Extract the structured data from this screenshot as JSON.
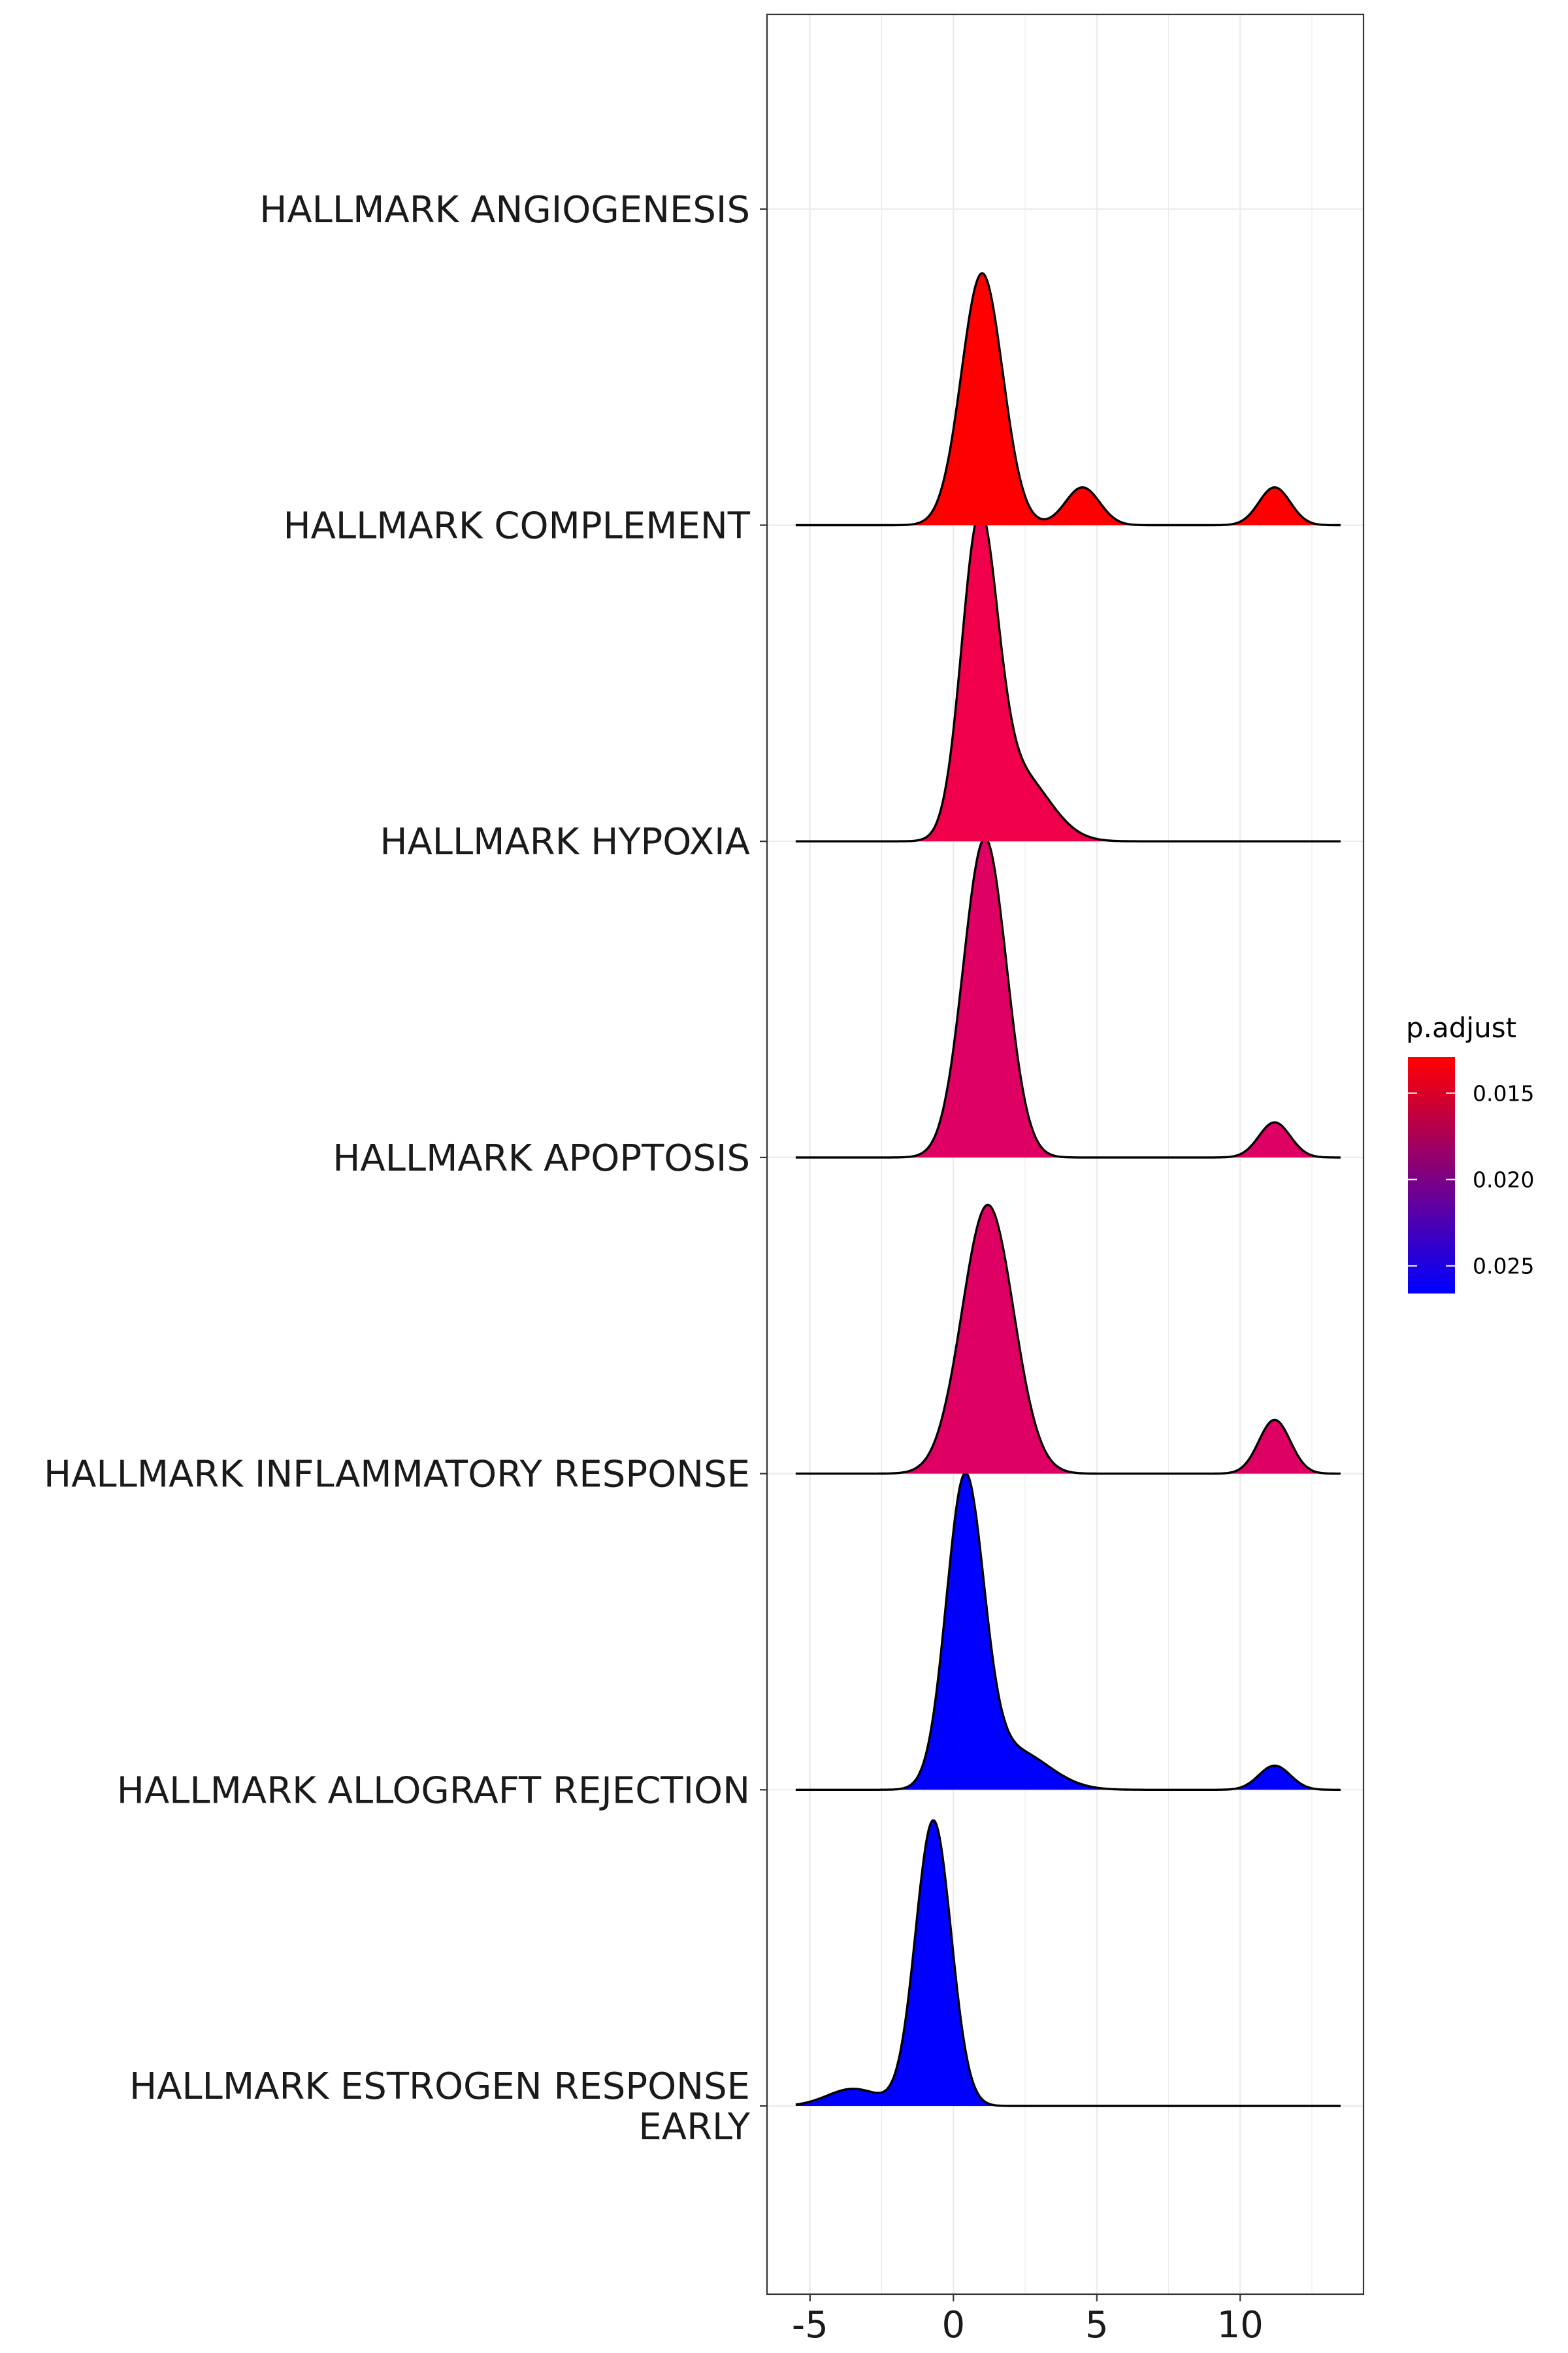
{
  "chart_data": {
    "type": "ridgeline",
    "title": "",
    "xlabel": "",
    "ylabel": "",
    "xlim": [
      -6.5,
      14.3
    ],
    "x_ticks": [
      {
        "value": -5,
        "label": "-5"
      },
      {
        "value": 0,
        "label": "0"
      },
      {
        "value": 5,
        "label": "5"
      },
      {
        "value": 10,
        "label": "10"
      }
    ],
    "grid": true,
    "background": "white",
    "legend": {
      "title": "p.adjust",
      "position": "right",
      "ticks": [
        {
          "value": 0.015,
          "label": "0.015"
        },
        {
          "value": 0.02,
          "label": "0.020"
        },
        {
          "value": 0.025,
          "label": "0.025"
        }
      ],
      "range": [
        0.0129,
        0.0266
      ],
      "low_color": "#FF0000",
      "high_color": "#0000FF"
    },
    "categories": [
      "HALLMARK ANGIOGENESIS",
      "HALLMARK COMPLEMENT",
      "HALLMARK HYPOXIA",
      "HALLMARK APOPTOSIS",
      "HALLMARK INFLAMMATORY RESPONSE",
      "HALLMARK ALLOGRAFT REJECTION",
      "HALLMARK ESTROGEN RESPONSE EARLY"
    ],
    "category_label_lines": [
      [
        "HALLMARK ANGIOGENESIS"
      ],
      [
        "HALLMARK COMPLEMENT"
      ],
      [
        "HALLMARK HYPOXIA"
      ],
      [
        "HALLMARK APOPTOSIS"
      ],
      [
        "HALLMARK INFLAMMATORY RESPONSE"
      ],
      [
        "HALLMARK ALLOGRAFT REJECTION"
      ],
      [
        "HALLMARK ESTROGEN RESPONSE",
        "EARLY"
      ]
    ],
    "density_x_range": [
      -5.5,
      13.5
    ],
    "series": [
      {
        "name": "HALLMARK ESTROGEN RESPONSE EARLY",
        "p_adjust": 0.0265,
        "color": "#0000FF",
        "peak_height": 1.7,
        "components": [
          {
            "mean": -0.7,
            "sd": 0.62,
            "weight": 1.0
          },
          {
            "mean": -3.5,
            "sd": 0.9,
            "weight": 0.06
          }
        ]
      },
      {
        "name": "HALLMARK ALLOGRAFT REJECTION",
        "p_adjust": 0.0265,
        "color": "#0000FF",
        "peak_height": 1.8,
        "components": [
          {
            "mean": 0.4,
            "sd": 0.65,
            "weight": 1.0
          },
          {
            "mean": 2.1,
            "sd": 1.2,
            "weight": 0.13
          },
          {
            "mean": 11.2,
            "sd": 0.55,
            "weight": 0.08
          }
        ]
      },
      {
        "name": "HALLMARK INFLAMMATORY RESPONSE",
        "p_adjust": 0.018,
        "color": "#DF0064",
        "peak_height": 1.6,
        "components": [
          {
            "mean": 1.2,
            "sd": 0.9,
            "weight": 1.0
          },
          {
            "mean": 11.2,
            "sd": 0.55,
            "weight": 0.2
          }
        ]
      },
      {
        "name": "HALLMARK APOPTOSIS",
        "p_adjust": 0.018,
        "color": "#DF0064",
        "peak_height": 1.9,
        "components": [
          {
            "mean": 1.1,
            "sd": 0.75,
            "weight": 1.0
          },
          {
            "mean": 11.2,
            "sd": 0.55,
            "weight": 0.11
          }
        ]
      },
      {
        "name": "HALLMARK HYPOXIA",
        "p_adjust": 0.016,
        "color": "#F0004A",
        "peak_height": 1.8,
        "components": [
          {
            "mean": 0.9,
            "sd": 0.62,
            "weight": 1.0
          },
          {
            "mean": 2.3,
            "sd": 1.05,
            "weight": 0.22
          }
        ]
      },
      {
        "name": "HALLMARK COMPLEMENT",
        "p_adjust": 0.0135,
        "color": "#FF0000",
        "peak_height": 1.5,
        "components": [
          {
            "mean": 1.0,
            "sd": 0.72,
            "weight": 1.0
          },
          {
            "mean": 4.5,
            "sd": 0.6,
            "weight": 0.15
          },
          {
            "mean": 11.2,
            "sd": 0.55,
            "weight": 0.15
          }
        ]
      },
      {
        "name": "HALLMARK ANGIOGENESIS",
        "p_adjust": 0.0135,
        "color": "#FF0000",
        "peak_height": 0.0,
        "components": []
      }
    ]
  }
}
